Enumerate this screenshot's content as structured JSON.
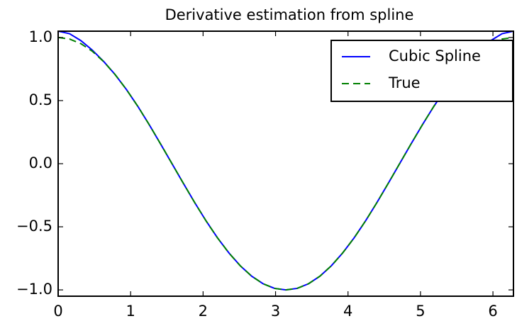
{
  "chart_data": {
    "type": "line",
    "title": "Derivative estimation from spline",
    "x": [
      0,
      0.157,
      0.314,
      0.471,
      0.628,
      0.785,
      0.942,
      1.1,
      1.257,
      1.414,
      1.571,
      1.728,
      1.885,
      2.042,
      2.199,
      2.356,
      2.513,
      2.67,
      2.827,
      2.985,
      3.142,
      3.299,
      3.456,
      3.613,
      3.77,
      3.927,
      4.084,
      4.241,
      4.398,
      4.555,
      4.712,
      4.869,
      5.027,
      5.184,
      5.341,
      5.498,
      5.655,
      5.812,
      5.969,
      6.126,
      6.283
    ],
    "series": [
      {
        "name": "Cubic Spline",
        "color": "#0000ff",
        "dash": false,
        "values": [
          1.05,
          1.03,
          0.975,
          0.9,
          0.81,
          0.707,
          0.588,
          0.454,
          0.309,
          0.156,
          0,
          -0.156,
          -0.309,
          -0.454,
          -0.588,
          -0.707,
          -0.809,
          -0.891,
          -0.951,
          -0.988,
          -1,
          -0.988,
          -0.951,
          -0.891,
          -0.809,
          -0.707,
          -0.588,
          -0.454,
          -0.309,
          -0.156,
          0,
          0.156,
          0.309,
          0.454,
          0.588,
          0.707,
          0.81,
          0.9,
          0.975,
          1.03,
          1.05
        ]
      },
      {
        "name": "True",
        "color": "#008000",
        "dash": true,
        "values": [
          1,
          0.988,
          0.951,
          0.891,
          0.809,
          0.707,
          0.588,
          0.454,
          0.309,
          0.156,
          0,
          -0.156,
          -0.309,
          -0.454,
          -0.588,
          -0.707,
          -0.809,
          -0.891,
          -0.951,
          -0.988,
          -1,
          -0.988,
          -0.951,
          -0.891,
          -0.809,
          -0.707,
          -0.588,
          -0.454,
          -0.309,
          -0.156,
          0,
          0.156,
          0.309,
          0.454,
          0.588,
          0.707,
          0.809,
          0.891,
          0.951,
          0.988,
          1
        ]
      }
    ],
    "xlim": [
      0,
      6.283
    ],
    "xticks": [
      0,
      1,
      2,
      3,
      4,
      5,
      6
    ],
    "ylim": [
      -1.05,
      1.05
    ],
    "yticks": [
      {
        "value": -1,
        "label": "−1.0"
      },
      {
        "value": -0.5,
        "label": "−0.5"
      },
      {
        "value": 0,
        "label": "0.0"
      },
      {
        "value": 0.5,
        "label": "0.5"
      },
      {
        "value": 1,
        "label": "1.0"
      }
    ],
    "legend": "upper right"
  }
}
